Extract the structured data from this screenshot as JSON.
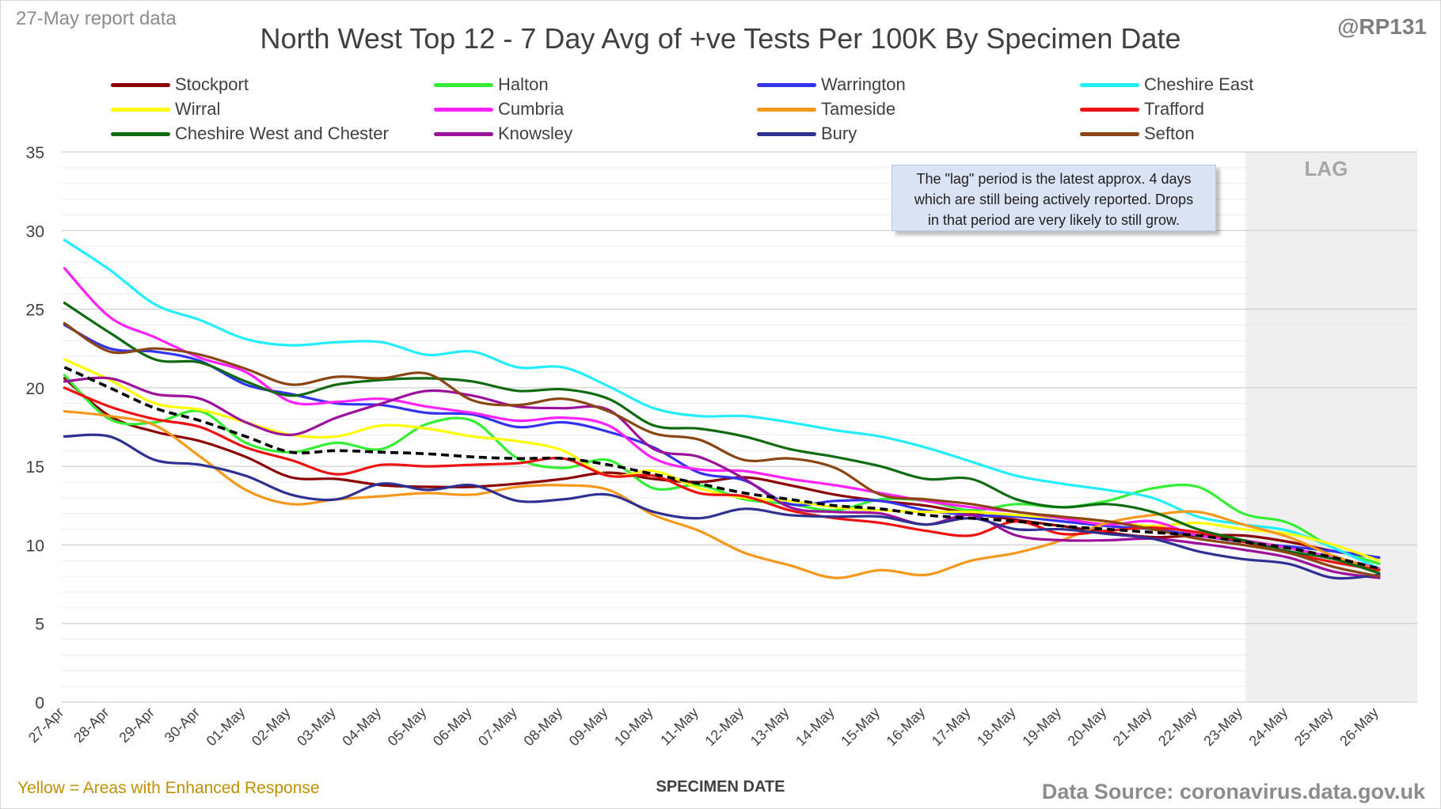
{
  "header": {
    "report_tag": "27-May report data",
    "title": "North West Top 12 - 7 Day Avg of +ve Tests Per 100K By Specimen Date",
    "handle": "@RP131"
  },
  "footer": {
    "left_note": "Yellow = Areas with Enhanced Response",
    "source": "Data Source: coronavirus.data.gov.uk"
  },
  "annotation": {
    "lag_label": "LAG",
    "lag_note_line1": "The \"lag\" period is the latest approx. 4 days",
    "lag_note_line2": "which are still being actively reported.  Drops",
    "lag_note_line3": "in that period are very likely to still grow."
  },
  "colors": {
    "lag_band": "#efefef",
    "average_line": "#000000",
    "grid": "#d9d9d9"
  },
  "chart_data": {
    "type": "line",
    "title": "North West Top 12 - 7 Day Avg of +ve Tests Per 100K By Specimen Date",
    "xlabel": "SPECIMEN DATE",
    "ylabel": "",
    "ylim": [
      0,
      35
    ],
    "yticks": [
      0,
      5,
      10,
      15,
      20,
      25,
      30,
      35
    ],
    "grid": true,
    "legend_position": "top",
    "lag_start_category": "23-May",
    "categories": [
      "27-Apr",
      "28-Apr",
      "29-Apr",
      "30-Apr",
      "01-May",
      "02-May",
      "03-May",
      "04-May",
      "05-May",
      "06-May",
      "07-May",
      "08-May",
      "09-May",
      "10-May",
      "11-May",
      "12-May",
      "13-May",
      "14-May",
      "15-May",
      "16-May",
      "17-May",
      "18-May",
      "19-May",
      "20-May",
      "21-May",
      "22-May",
      "23-May",
      "24-May",
      "25-May",
      "26-May"
    ],
    "series": [
      {
        "name": "Stockport",
        "color": "#8b0000",
        "values": [
          20.6,
          18.2,
          17.2,
          16.6,
          15.6,
          14.3,
          14.2,
          13.8,
          13.7,
          13.7,
          13.9,
          14.2,
          14.6,
          14.2,
          14.0,
          14.3,
          13.8,
          13.2,
          12.8,
          12.5,
          12.0,
          11.6,
          11.2,
          10.8,
          10.5,
          10.6,
          10.6,
          10.2,
          9.6,
          9.2
        ]
      },
      {
        "name": "Halton",
        "color": "#33ee33",
        "values": [
          20.8,
          18.0,
          17.8,
          18.5,
          16.5,
          15.9,
          16.5,
          16.1,
          17.7,
          17.9,
          15.5,
          14.9,
          15.4,
          13.6,
          13.8,
          12.9,
          12.6,
          12.2,
          12.9,
          12.8,
          12.2,
          12.6,
          12.4,
          12.8,
          13.6,
          13.7,
          12.0,
          11.4,
          9.8,
          8.8
        ]
      },
      {
        "name": "Warrington",
        "color": "#3333ee",
        "values": [
          24.0,
          22.5,
          22.3,
          21.7,
          20.2,
          19.6,
          19.0,
          18.9,
          18.4,
          18.3,
          17.5,
          17.8,
          17.2,
          16.2,
          14.6,
          14.1,
          12.6,
          12.8,
          12.8,
          12.2,
          11.9,
          11.8,
          11.5,
          11.2,
          11.0,
          10.6,
          10.2,
          9.9,
          9.6,
          9.2
        ]
      },
      {
        "name": "Cheshire East",
        "color": "#22eeff",
        "values": [
          29.4,
          27.5,
          25.3,
          24.3,
          23.1,
          22.7,
          22.9,
          22.9,
          22.1,
          22.3,
          21.3,
          21.3,
          20.1,
          18.7,
          18.2,
          18.2,
          17.8,
          17.3,
          16.9,
          16.2,
          15.3,
          14.4,
          13.9,
          13.5,
          13.0,
          11.8,
          11.3,
          10.9,
          9.8,
          8.5
        ]
      },
      {
        "name": "Wirral",
        "color": "#ffff00",
        "values": [
          21.8,
          20.5,
          19.0,
          18.6,
          17.8,
          17.0,
          16.9,
          17.6,
          17.4,
          16.9,
          16.6,
          16.0,
          14.4,
          14.7,
          13.6,
          13.0,
          12.8,
          12.4,
          12.2,
          12.1,
          12.1,
          11.9,
          11.7,
          11.5,
          11.2,
          11.4,
          11.0,
          10.7,
          10.0,
          9.0
        ]
      },
      {
        "name": "Cumbria",
        "color": "#ff22ff",
        "values": [
          27.6,
          24.5,
          23.2,
          21.9,
          21.0,
          19.1,
          19.1,
          19.3,
          18.8,
          18.4,
          17.9,
          18.1,
          17.6,
          15.5,
          14.8,
          14.7,
          14.2,
          13.8,
          13.3,
          12.8,
          12.4,
          12.1,
          11.7,
          11.3,
          11.5,
          10.6,
          10.3,
          9.8,
          9.2,
          8.5
        ]
      },
      {
        "name": "Tameside",
        "color": "#f7971c",
        "values": [
          18.5,
          18.2,
          17.6,
          15.6,
          13.5,
          12.6,
          12.9,
          13.1,
          13.3,
          13.2,
          13.7,
          13.8,
          13.5,
          11.9,
          10.9,
          9.5,
          8.7,
          7.9,
          8.4,
          8.1,
          9.0,
          9.5,
          10.3,
          11.4,
          11.9,
          12.1,
          11.3,
          10.5,
          9.3,
          8.4
        ]
      },
      {
        "name": "Trafford",
        "color": "#ee1111",
        "values": [
          20.0,
          18.8,
          18.0,
          17.5,
          16.2,
          15.4,
          14.5,
          15.1,
          15.0,
          15.1,
          15.2,
          15.5,
          14.4,
          14.4,
          13.3,
          13.1,
          12.2,
          11.7,
          11.4,
          10.9,
          10.6,
          11.5,
          10.7,
          10.9,
          11.1,
          10.8,
          10.2,
          9.5,
          8.9,
          8.4
        ]
      },
      {
        "name": "Cheshire West and Chester",
        "color": "#0f6b0f",
        "values": [
          25.4,
          23.5,
          21.8,
          21.6,
          20.4,
          19.5,
          20.2,
          20.5,
          20.6,
          20.4,
          19.8,
          19.9,
          19.3,
          17.6,
          17.4,
          16.9,
          16.1,
          15.6,
          15.0,
          14.2,
          14.2,
          12.9,
          12.4,
          12.6,
          12.1,
          11.0,
          10.3,
          9.6,
          9.1,
          8.2
        ]
      },
      {
        "name": "Knowsley",
        "color": "#9b119b",
        "values": [
          20.4,
          20.6,
          19.6,
          19.3,
          17.8,
          17.0,
          18.1,
          19.0,
          19.8,
          19.5,
          18.8,
          18.7,
          18.6,
          16.1,
          15.6,
          14.2,
          12.4,
          12.1,
          12.0,
          11.3,
          11.9,
          10.6,
          10.3,
          10.3,
          10.4,
          10.1,
          9.7,
          9.2,
          8.3,
          7.9
        ]
      },
      {
        "name": "Bury",
        "color": "#2e3192",
        "values": [
          16.9,
          16.9,
          15.4,
          15.1,
          14.4,
          13.2,
          12.9,
          13.9,
          13.5,
          13.8,
          12.8,
          12.9,
          13.2,
          12.1,
          11.7,
          12.3,
          11.9,
          11.8,
          11.8,
          11.3,
          11.7,
          11.0,
          11.0,
          10.7,
          10.4,
          9.6,
          9.1,
          8.8,
          7.9,
          8.1
        ]
      },
      {
        "name": "Sefton",
        "color": "#8b4513",
        "values": [
          24.1,
          22.3,
          22.5,
          22.1,
          21.2,
          20.2,
          20.7,
          20.6,
          20.9,
          19.2,
          18.9,
          19.3,
          18.5,
          17.1,
          16.7,
          15.4,
          15.5,
          14.9,
          13.2,
          12.9,
          12.6,
          12.1,
          11.8,
          11.5,
          11.0,
          10.4,
          10.0,
          9.5,
          8.6,
          8.0
        ]
      }
    ],
    "average": {
      "values": [
        21.3,
        20.0,
        18.7,
        17.9,
        16.9,
        15.9,
        16.0,
        15.9,
        15.8,
        15.6,
        15.5,
        15.5,
        15.1,
        14.5,
        13.9,
        13.3,
        12.9,
        12.5,
        12.3,
        11.9,
        11.7,
        11.5,
        11.2,
        11.0,
        10.8,
        10.6,
        10.2,
        9.8,
        9.2,
        8.5
      ]
    }
  }
}
